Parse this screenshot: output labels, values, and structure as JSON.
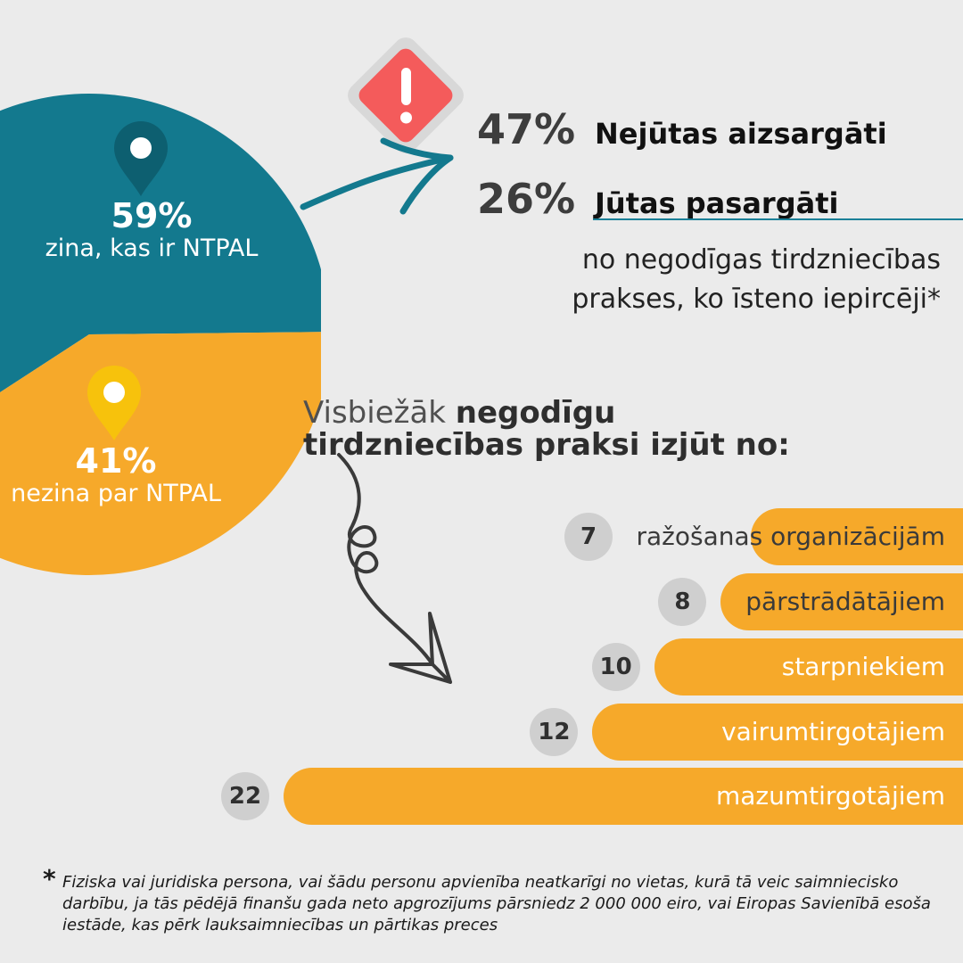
{
  "pie": {
    "segments": [
      {
        "pct": "59%",
        "text": "zina, kas ir NTPAL",
        "value": 59,
        "color": "#13798e"
      },
      {
        "pct": "41%",
        "text": "nezina par NTPAL",
        "value": 41,
        "color": "#f6a92a"
      }
    ]
  },
  "protection": {
    "items": [
      {
        "pct": "47%",
        "text": "Nejūtas aizsargāti"
      },
      {
        "pct": "26%",
        "text": "Jūtas pasargāti"
      }
    ],
    "note_line1": "no negodīgas tirdzniecības",
    "note_line2": "prakses, ko īsteno iepircēji*"
  },
  "heading": {
    "part1": "Visbiežāk ",
    "part2": "negodīgu",
    "part3": "tirdzniecības praksi izjūt no:"
  },
  "footnote": {
    "star": "*",
    "text": "Fiziska vai juridiska persona, vai šādu personu apvienība neatkarīgi no vietas, kurā tā veic saimniecisko darbību, ja tās pēdējā finanšu gada neto apgrozījums pārsniedz 2 000 000 eiro, vai Eiropas Savienībā esoša iestāde, kas pērk lauksaimniecības un pārtikas preces"
  },
  "colors": {
    "teal": "#13798e",
    "orange": "#f6a92a",
    "warning_red": "#f45b5b",
    "badge_grey": "#cfcfcf",
    "background": "#ebebeb"
  },
  "icons": [
    "map-pin-icon",
    "warning-icon",
    "curved-arrow-icon",
    "swirl-arrow-icon"
  ],
  "chart_data": [
    {
      "type": "pie",
      "values": [
        59,
        41
      ],
      "categories": [
        "zina, kas ir NTPAL",
        "nezina par NTPAL"
      ]
    },
    {
      "type": "bar",
      "orientation": "horizontal",
      "categories": [
        "ražošanas organizācijām",
        "pārstrādātājiem",
        "starpniekiem",
        "vairumtirgotājiem",
        "mazumtirgotājiem"
      ],
      "values": [
        7,
        8,
        10,
        12,
        22
      ],
      "labels": [
        "7",
        "8",
        "10",
        "12",
        "22"
      ]
    }
  ]
}
